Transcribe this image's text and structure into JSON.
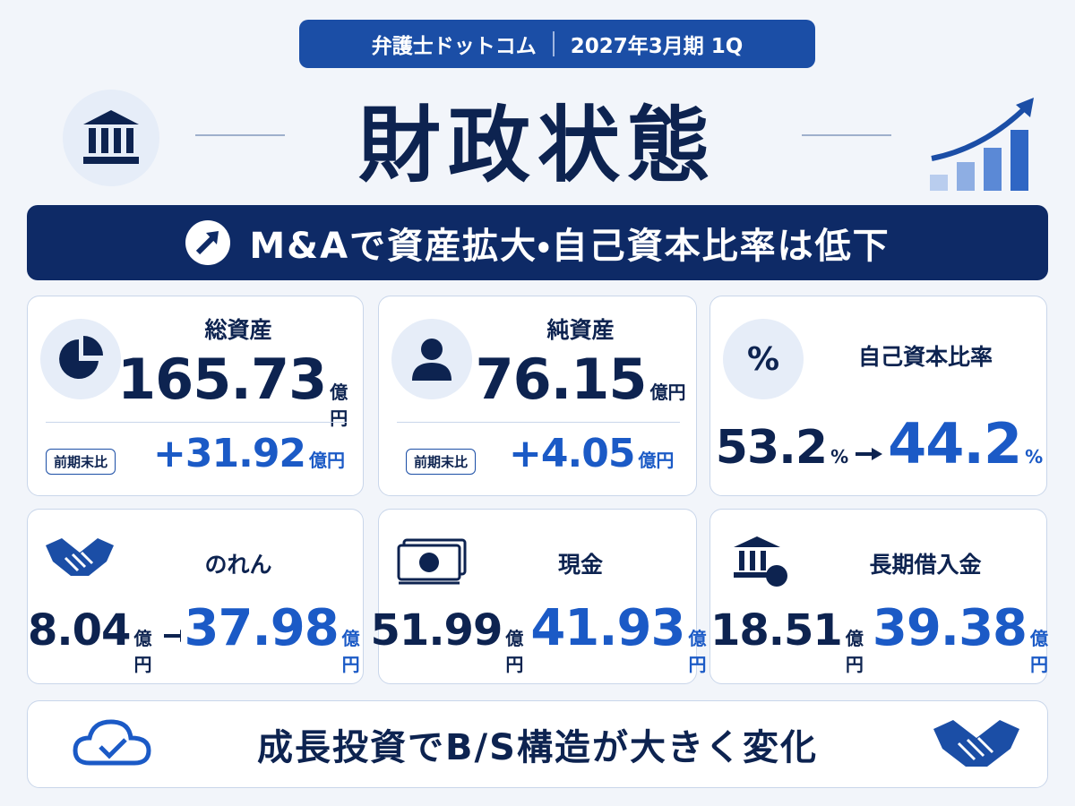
{
  "header": {
    "company": "弁護士ドットコム",
    "period": "2027年3月期 1Q",
    "title": "財政状態"
  },
  "banner": "M&Aで資産拡大・自己資本比率は低下",
  "cards": [
    {
      "label": "総資産",
      "value": "165.73",
      "unit": "億円",
      "badge": "前期末比",
      "change": "+31.92",
      "change_unit": "億円"
    },
    {
      "label": "純資産",
      "value": "76.15",
      "unit": "億円",
      "badge": "前期末比",
      "change": "+4.05",
      "change_unit": "億円"
    },
    {
      "icon_label": "%",
      "label": "自己資本比率",
      "from": "53.2",
      "from_unit": "%",
      "to": "44.2",
      "to_unit": "%"
    },
    {
      "label": "のれん",
      "from": "8.04",
      "from_unit": "億円",
      "to": "37.98",
      "to_unit": "億円"
    },
    {
      "label": "現金",
      "from": "51.99",
      "from_unit": "億円",
      "to": "41.93",
      "to_unit": "億円"
    },
    {
      "label": "長期借入金",
      "from": "18.51",
      "from_unit": "億円",
      "to": "39.38",
      "to_unit": "億円"
    }
  ],
  "footer": "成長投資でB/S構造が大きく変化"
}
